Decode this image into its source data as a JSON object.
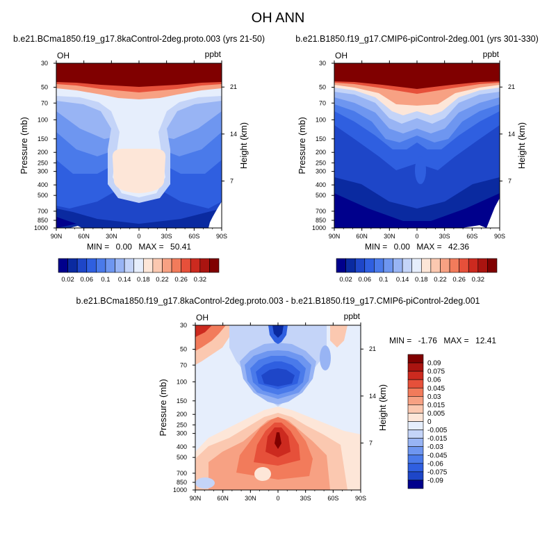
{
  "page": {
    "title": "OH ANN"
  },
  "chart_data": [
    {
      "type": "heatmap",
      "title": "b.e21.BCma1850.f19_g17.8kaControl-2deg.proto.003 (yrs 21-50)",
      "left_label": "OH",
      "right_label": "ppbt",
      "xlabel": "",
      "ylabel": "Pressure (mb)",
      "ylabel_right": "Height (km)",
      "x_ticks": [
        "90N",
        "60N",
        "30N",
        "0",
        "30S",
        "60S",
        "90S"
      ],
      "y_ticks": [
        "30",
        "50",
        "70",
        "100",
        "150",
        "200",
        "250",
        "300",
        "400",
        "500",
        "700",
        "850",
        "1000"
      ],
      "y_ticks_right": [
        "21",
        "14",
        "7"
      ],
      "stats": {
        "min_label": "MIN =",
        "min": "0.00",
        "max_label": "MAX =",
        "max": "50.41"
      },
      "colorbar": {
        "orientation": "horizontal",
        "tick_labels": [
          "0.02",
          "0.06",
          "0.1",
          "0.14",
          "0.18",
          "0.22",
          "0.26",
          "0.32"
        ],
        "colors": [
          "#00008c",
          "#0a2aa0",
          "#1e46c8",
          "#2f5fe0",
          "#4a7aea",
          "#6e96f0",
          "#98b4f4",
          "#c4d4f8",
          "#e6eefc",
          "#fde6d8",
          "#fbc8b0",
          "#f7a183",
          "#f27b5b",
          "#e6503a",
          "#cc2a1f",
          "#aa1410",
          "#800000"
        ]
      }
    },
    {
      "type": "heatmap",
      "title": "b.e21.B1850.f19_g17.CMIP6-piControl-2deg.001 (yrs 301-330)",
      "left_label": "OH",
      "right_label": "ppbt",
      "xlabel": "",
      "ylabel": "Pressure (mb)",
      "ylabel_right": "Height (km)",
      "x_ticks": [
        "90N",
        "60N",
        "30N",
        "0",
        "30S",
        "60S",
        "90S"
      ],
      "y_ticks": [
        "30",
        "50",
        "70",
        "100",
        "150",
        "200",
        "250",
        "300",
        "400",
        "500",
        "700",
        "850",
        "1000"
      ],
      "y_ticks_right": [
        "21",
        "14",
        "7"
      ],
      "stats": {
        "min_label": "MIN =",
        "min": "0.00",
        "max_label": "MAX =",
        "max": "42.36"
      },
      "colorbar": {
        "orientation": "horizontal",
        "tick_labels": [
          "0.02",
          "0.06",
          "0.1",
          "0.14",
          "0.18",
          "0.22",
          "0.26",
          "0.32"
        ],
        "colors": [
          "#00008c",
          "#0a2aa0",
          "#1e46c8",
          "#2f5fe0",
          "#4a7aea",
          "#6e96f0",
          "#98b4f4",
          "#c4d4f8",
          "#e6eefc",
          "#fde6d8",
          "#fbc8b0",
          "#f7a183",
          "#f27b5b",
          "#e6503a",
          "#cc2a1f",
          "#aa1410",
          "#800000"
        ]
      }
    },
    {
      "type": "heatmap",
      "title": "b.e21.BCma1850.f19_g17.8kaControl-2deg.proto.003 - b.e21.B1850.f19_g17.CMIP6-piControl-2deg.001",
      "left_label": "OH",
      "right_label": "ppbt",
      "xlabel": "",
      "ylabel": "Pressure (mb)",
      "ylabel_right": "Height (km)",
      "x_ticks": [
        "90N",
        "60N",
        "30N",
        "0",
        "30S",
        "60S",
        "90S"
      ],
      "y_ticks": [
        "30",
        "50",
        "70",
        "100",
        "150",
        "200",
        "250",
        "300",
        "400",
        "500",
        "700",
        "850",
        "1000"
      ],
      "y_ticks_right": [
        "21",
        "14",
        "7"
      ],
      "stats": {
        "min_label": "MIN =",
        "min": "-1.76",
        "max_label": "MAX =",
        "max": "12.41"
      },
      "colorbar": {
        "orientation": "vertical",
        "tick_labels": [
          "0.09",
          "0.075",
          "0.06",
          "0.045",
          "0.03",
          "0.015",
          "0.005",
          "0",
          "-0.005",
          "-0.015",
          "-0.03",
          "-0.045",
          "-0.06",
          "-0.075",
          "-0.09"
        ],
        "colors": [
          "#800000",
          "#aa1410",
          "#cc2a1f",
          "#e6503a",
          "#f27b5b",
          "#f7a183",
          "#fbc8b0",
          "#fde6d8",
          "#e6eefc",
          "#c4d4f8",
          "#98b4f4",
          "#6e96f0",
          "#4a7aea",
          "#2f5fe0",
          "#1e46c8",
          "#00008c"
        ]
      }
    }
  ]
}
